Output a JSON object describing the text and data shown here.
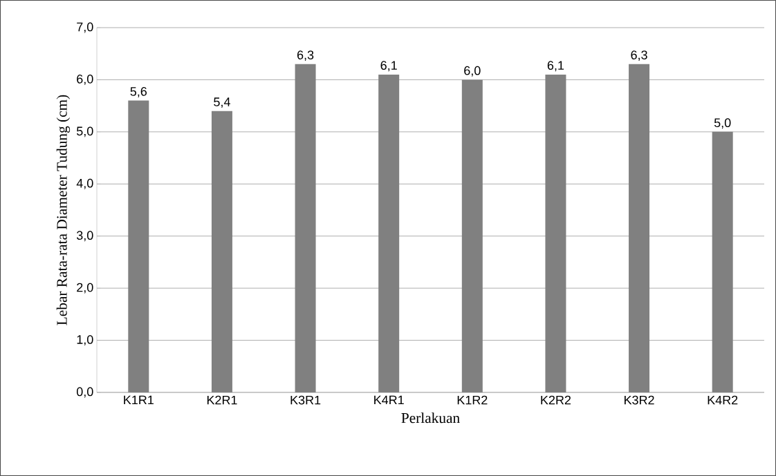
{
  "chart_data": {
    "type": "bar",
    "xlabel": "Perlakuan",
    "ylabel": "Lebar Rata-rata Diameter Tudung (cm)",
    "categories": [
      "K1R1",
      "K2R1",
      "K3R1",
      "K4R1",
      "K1R2",
      "K2R2",
      "K3R2",
      "K4R2"
    ],
    "values": [
      5.6,
      5.4,
      6.3,
      6.1,
      6.0,
      6.1,
      6.3,
      5.0
    ],
    "value_labels": [
      "5,6",
      "5,4",
      "6,3",
      "6,1",
      "6,0",
      "6,1",
      "6,3",
      "5,0"
    ],
    "color": "#808080",
    "ylim": [
      0,
      7
    ],
    "yticks": [
      {
        "value": 0,
        "label": "0,0"
      },
      {
        "value": 1,
        "label": "1,0"
      },
      {
        "value": 2,
        "label": "2,0"
      },
      {
        "value": 3,
        "label": "3,0"
      },
      {
        "value": 4,
        "label": "4,0"
      },
      {
        "value": 5,
        "label": "5,0"
      },
      {
        "value": 6,
        "label": "6,0"
      },
      {
        "value": 7,
        "label": "7,0"
      }
    ],
    "grid": "y"
  }
}
